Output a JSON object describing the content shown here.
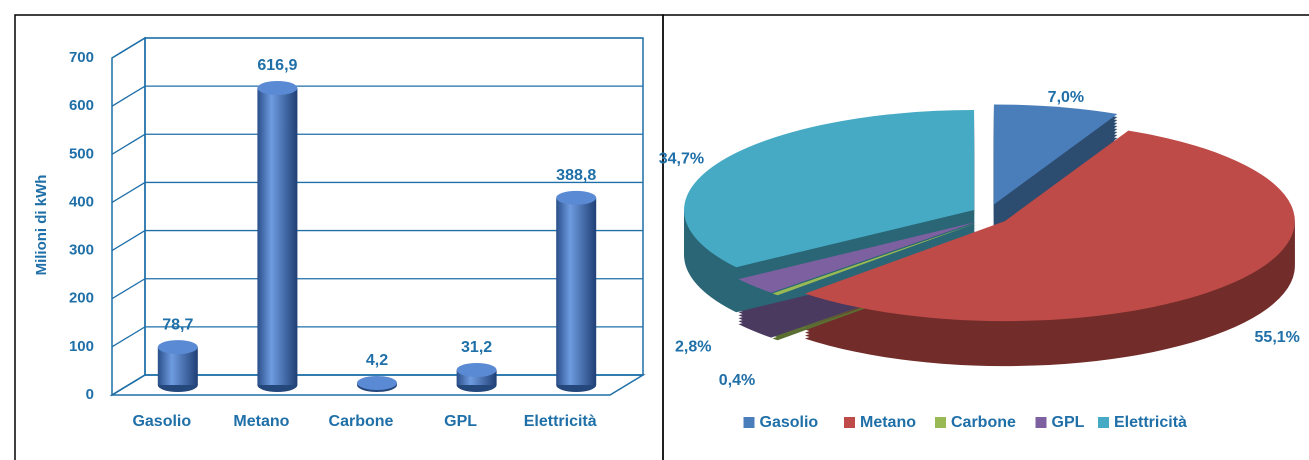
{
  "chart_data": [
    {
      "type": "bar",
      "ylabel": "Milioni di kWh",
      "categories": [
        "Gasolio",
        "Metano",
        "Carbone",
        "GPL",
        "Elettricità"
      ],
      "values": [
        78.7,
        616.9,
        4.2,
        31.2,
        388.8
      ],
      "value_labels": [
        "78,7",
        "616,9",
        "4,2",
        "31,2",
        "388,8"
      ],
      "color": "#3f72b8",
      "ylim": [
        0,
        700
      ],
      "yticks": [
        0,
        100,
        200,
        300,
        400,
        500,
        600,
        700
      ],
      "grid": true
    },
    {
      "type": "pie",
      "categories": [
        "Gasolio",
        "Metano",
        "Carbone",
        "GPL",
        "Elettricità"
      ],
      "values": [
        7.0,
        55.1,
        0.4,
        2.8,
        34.7
      ],
      "value_labels": [
        "7,0%",
        "55,1%",
        "0,4%",
        "2,8%",
        "34,7%"
      ],
      "colors": [
        "#4a7ebb",
        "#be4b48",
        "#98b954",
        "#7d60a0",
        "#46aac5"
      ],
      "legend": "bottom"
    }
  ]
}
